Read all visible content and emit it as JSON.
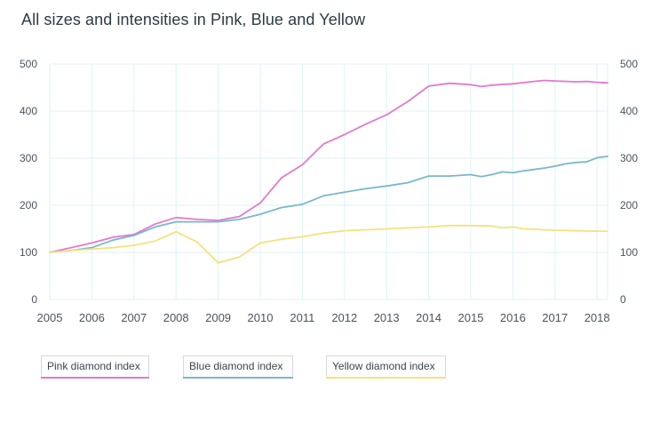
{
  "title": "All sizes and intensities in Pink, Blue and Yellow",
  "colors": {
    "pink": "#e07ad2",
    "blue": "#78b8cb",
    "yellow": "#f3e27c",
    "grid": "#dff2f4"
  },
  "legend": [
    {
      "label": "Pink diamond index",
      "color": "#e07ad2"
    },
    {
      "label": "Blue diamond index",
      "color": "#78b8cb"
    },
    {
      "label": "Yellow diamond index",
      "color": "#f3e27c"
    }
  ],
  "chart_data": {
    "type": "line",
    "title": "All sizes and intensities in Pink, Blue and Yellow",
    "xlim": [
      2005,
      2018.25
    ],
    "ylim": [
      0,
      500
    ],
    "x_ticks": [
      2005,
      2006,
      2007,
      2008,
      2009,
      2010,
      2011,
      2012,
      2013,
      2014,
      2015,
      2016,
      2017,
      2018
    ],
    "y_ticks": [
      0,
      100,
      200,
      300,
      400,
      500
    ],
    "grid": true,
    "legend_position": "bottom",
    "series": [
      {
        "name": "Pink diamond index",
        "color": "#e07ad2",
        "points": [
          [
            2005,
            100
          ],
          [
            2005.5,
            110
          ],
          [
            2006,
            120
          ],
          [
            2006.5,
            132
          ],
          [
            2007,
            138
          ],
          [
            2007.5,
            160
          ],
          [
            2008,
            174
          ],
          [
            2008.5,
            170
          ],
          [
            2009,
            168
          ],
          [
            2009.5,
            176
          ],
          [
            2010,
            205
          ],
          [
            2010.5,
            258
          ],
          [
            2011,
            286
          ],
          [
            2011.5,
            330
          ],
          [
            2012,
            350
          ],
          [
            2012.5,
            372
          ],
          [
            2013,
            392
          ],
          [
            2013.5,
            420
          ],
          [
            2014,
            453
          ],
          [
            2014.5,
            459
          ],
          [
            2015,
            456
          ],
          [
            2015.25,
            452
          ],
          [
            2015.5,
            455
          ],
          [
            2016,
            458
          ],
          [
            2016.5,
            463
          ],
          [
            2016.75,
            465
          ],
          [
            2017,
            464
          ],
          [
            2017.5,
            462
          ],
          [
            2017.75,
            463
          ],
          [
            2018,
            461
          ],
          [
            2018.25,
            460
          ]
        ]
      },
      {
        "name": "Blue diamond index",
        "color": "#78b8cb",
        "points": [
          [
            2005,
            100
          ],
          [
            2005.5,
            104
          ],
          [
            2006,
            110
          ],
          [
            2006.5,
            126
          ],
          [
            2007,
            136
          ],
          [
            2007.5,
            154
          ],
          [
            2008,
            165
          ],
          [
            2008.5,
            165
          ],
          [
            2009,
            165
          ],
          [
            2009.5,
            170
          ],
          [
            2010,
            181
          ],
          [
            2010.5,
            195
          ],
          [
            2011,
            202
          ],
          [
            2011.5,
            220
          ],
          [
            2012,
            228
          ],
          [
            2012.5,
            235
          ],
          [
            2013,
            241
          ],
          [
            2013.5,
            248
          ],
          [
            2014,
            262
          ],
          [
            2014.5,
            262
          ],
          [
            2015,
            265
          ],
          [
            2015.25,
            261
          ],
          [
            2015.5,
            265
          ],
          [
            2015.75,
            271
          ],
          [
            2016,
            269
          ],
          [
            2016.25,
            273
          ],
          [
            2016.5,
            276
          ],
          [
            2016.75,
            279
          ],
          [
            2017,
            283
          ],
          [
            2017.25,
            288
          ],
          [
            2017.5,
            291
          ],
          [
            2017.75,
            292
          ],
          [
            2018,
            301
          ],
          [
            2018.25,
            304
          ]
        ]
      },
      {
        "name": "Yellow diamond index",
        "color": "#f3e27c",
        "points": [
          [
            2005,
            100
          ],
          [
            2005.5,
            104
          ],
          [
            2006,
            107
          ],
          [
            2006.5,
            110
          ],
          [
            2007,
            115
          ],
          [
            2007.5,
            124
          ],
          [
            2008,
            144
          ],
          [
            2008.5,
            122
          ],
          [
            2009,
            78
          ],
          [
            2009.5,
            90
          ],
          [
            2010,
            120
          ],
          [
            2010.5,
            128
          ],
          [
            2011,
            133
          ],
          [
            2011.5,
            141
          ],
          [
            2012,
            146
          ],
          [
            2012.5,
            148
          ],
          [
            2013,
            150
          ],
          [
            2013.5,
            152
          ],
          [
            2014,
            154
          ],
          [
            2014.5,
            157
          ],
          [
            2015,
            157
          ],
          [
            2015.5,
            156
          ],
          [
            2015.75,
            152
          ],
          [
            2016,
            154
          ],
          [
            2016.25,
            150
          ],
          [
            2016.5,
            149
          ],
          [
            2017,
            147
          ],
          [
            2017.5,
            146
          ],
          [
            2018,
            145
          ],
          [
            2018.25,
            145
          ]
        ]
      }
    ]
  }
}
